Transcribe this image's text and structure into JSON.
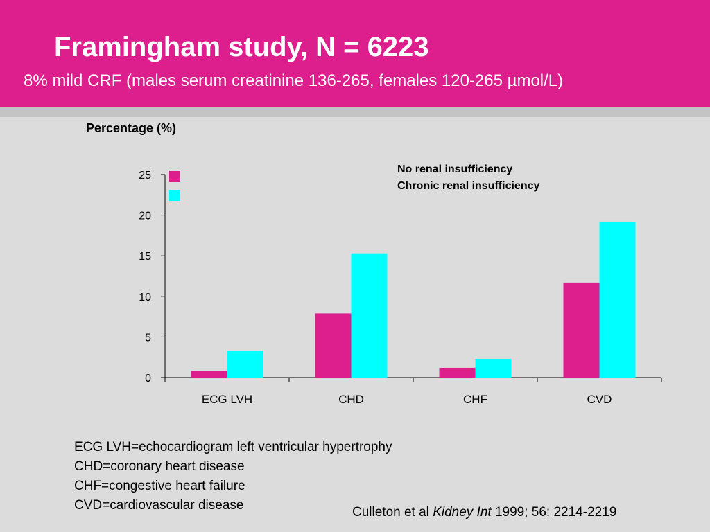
{
  "slide": {
    "title": "Framingham study, N = 6223",
    "subtitle": "8% mild CRF (males serum creatinine 136-265, females 120-265 µmol/L)",
    "definitions": [
      "ECG LVH=echocardiogram left ventricular hypertrophy",
      "CHD=coronary heart disease",
      "CHF=congestive heart failure",
      "CVD=cardiovascular disease"
    ],
    "citation": {
      "authors": "Culleton et al",
      "journal": "Kidney Int",
      "details": "1999; 56: 2214-2219"
    }
  },
  "colors": {
    "header": "#dc1f8c",
    "series1": "#dc1f8c",
    "series2": "#00ffff"
  },
  "chart_data": {
    "type": "bar",
    "title": "",
    "ylabel": "Percentage (%)",
    "xlabel": "",
    "categories": [
      "ECG LVH",
      "CHD",
      "CHF",
      "CVD"
    ],
    "series": [
      {
        "name": "No renal insufficiency",
        "values": [
          0.8,
          7.9,
          1.2,
          11.7
        ]
      },
      {
        "name": "Chronic renal insufficiency",
        "values": [
          3.3,
          15.3,
          2.3,
          19.2
        ]
      }
    ],
    "ylim": [
      0,
      25
    ],
    "yticks": [
      0,
      5,
      10,
      15,
      20,
      25
    ],
    "grid": false,
    "legend_position": "top-right"
  }
}
